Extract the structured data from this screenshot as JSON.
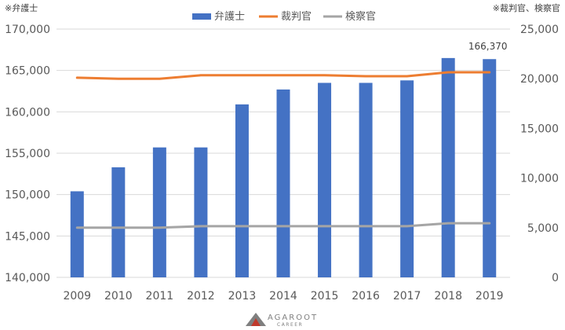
{
  "chart_data": {
    "type": "bar",
    "categories": [
      "2009",
      "2010",
      "2011",
      "2012",
      "2013",
      "2014",
      "2015",
      "2016",
      "2017",
      "2018",
      "2019"
    ],
    "series": [
      {
        "name": "弁護士",
        "type": "bar",
        "axis": "left",
        "color": "#4472c4",
        "values": [
          150400,
          153300,
          155700,
          155700,
          160900,
          162700,
          163500,
          163500,
          163800,
          166500,
          166370
        ]
      },
      {
        "name": "裁判官",
        "type": "line",
        "axis": "right",
        "color": "#ed7d31",
        "values": [
          20100,
          20000,
          20000,
          20350,
          20350,
          20350,
          20350,
          20250,
          20250,
          20650,
          20650
        ]
      },
      {
        "name": "検察官",
        "type": "line",
        "axis": "right",
        "color": "#a5a5a5",
        "values": [
          5000,
          5000,
          5000,
          5150,
          5150,
          5150,
          5150,
          5150,
          5150,
          5450,
          5450
        ]
      }
    ],
    "y_left": {
      "min": 140000,
      "max": 170000,
      "step": 5000,
      "tick_labels": [
        "140,000",
        "145,000",
        "150,000",
        "155,000",
        "160,000",
        "165,000",
        "170,000"
      ]
    },
    "y_right": {
      "min": 0,
      "max": 25000,
      "step": 5000,
      "tick_labels": [
        "0",
        "5,000",
        "10,000",
        "15,000",
        "20,000",
        "25,000"
      ]
    },
    "data_labels": [
      {
        "series": 0,
        "index": 10,
        "text": "166,370"
      }
    ],
    "left_axis_note": "※弁護士",
    "right_axis_note": "※裁判官、検察官",
    "legend_position": "top",
    "grid": true
  },
  "logo": {
    "word": "AGAROOT",
    "sub": "CAREER"
  }
}
